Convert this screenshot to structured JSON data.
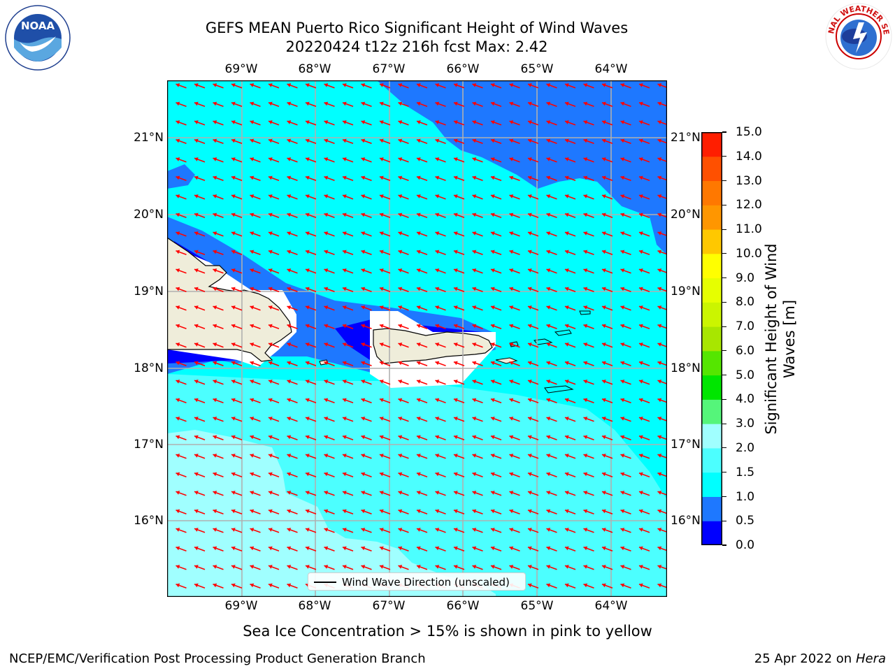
{
  "header": {
    "title_line1": "GEFS MEAN Puerto Rico Significant Height of Wind Waves",
    "title_line2": "20220424 t12z 216h fcst   Max: 2.42"
  },
  "logos": {
    "left": {
      "name": "noaa-logo",
      "text": "NOAA"
    },
    "right": {
      "name": "nws-logo",
      "text": "NATIONAL WEATHER SERVICE"
    }
  },
  "map": {
    "lon_ticks": [
      "69°W",
      "68°W",
      "67°W",
      "66°W",
      "65°W",
      "64°W"
    ],
    "lat_ticks": [
      "21°N",
      "20°N",
      "19°N",
      "18°N",
      "17°N",
      "16°N"
    ],
    "legend_label": "Wind Wave Direction (unscaled)",
    "arrow_color": "#ff0000",
    "land_color": "#efedda"
  },
  "colorbar": {
    "label": "Significant Height of Wind Waves [m]",
    "tick_labels": [
      "0.0",
      "0.5",
      "1.0",
      "1.5",
      "2.0",
      "3.0",
      "4.0",
      "5.0",
      "6.0",
      "7.0",
      "8.0",
      "9.0",
      "10.0",
      "11.0",
      "12.0",
      "13.0",
      "14.0",
      "15.0"
    ],
    "colors": [
      "#0000ff",
      "#1e78ff",
      "#00ffff",
      "#4cffff",
      "#a0ffff",
      "#55f57a",
      "#00e600",
      "#55e600",
      "#a8e600",
      "#cbf500",
      "#e6ff00",
      "#ffff00",
      "#ffc800",
      "#ff9600",
      "#ff7800",
      "#ff5000",
      "#ff1e00"
    ]
  },
  "footer": {
    "sea_ice_note": "Sea Ice Concentration > 15% is shown in pink to yellow",
    "left_credit": "NCEP/EMC/Verification Post Processing Product Generation Branch",
    "date_text": "25 Apr 2022 on ",
    "machine": "Hera"
  }
}
